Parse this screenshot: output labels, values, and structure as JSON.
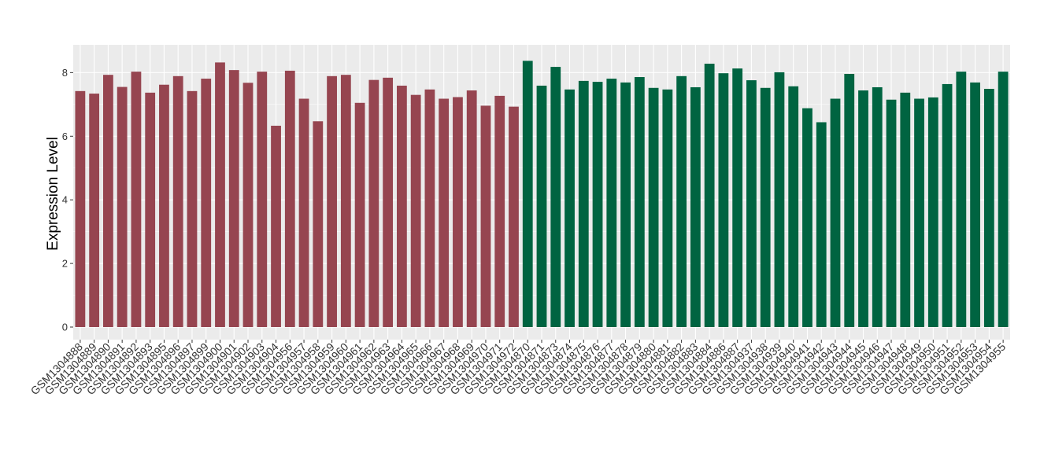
{
  "chart_data": {
    "type": "bar",
    "title": "",
    "xlabel": "",
    "ylabel": "Expression Level",
    "ylim": [
      0,
      8.8
    ],
    "yticks": [
      0,
      2,
      4,
      6,
      8
    ],
    "grid": true,
    "legend": "none",
    "categories": [
      "GSM1304888",
      "GSM1304889",
      "GSM1304890",
      "GSM1304891",
      "GSM1304892",
      "GSM1304893",
      "GSM1304895",
      "GSM1304896",
      "GSM1304897",
      "GSM1304899",
      "GSM1304900",
      "GSM1304901",
      "GSM1304902",
      "GSM1304903",
      "GSM1304904",
      "GSM1304956",
      "GSM1304957",
      "GSM1304958",
      "GSM1304959",
      "GSM1304960",
      "GSM1304961",
      "GSM1304962",
      "GSM1304963",
      "GSM1304964",
      "GSM1304965",
      "GSM1304966",
      "GSM1304967",
      "GSM1304968",
      "GSM1304969",
      "GSM1304970",
      "GSM1304971",
      "GSM1304972",
      "GSM1304870",
      "GSM1304871",
      "GSM1304873",
      "GSM1304874",
      "GSM1304875",
      "GSM1304876",
      "GSM1304877",
      "GSM1304878",
      "GSM1304879",
      "GSM1304880",
      "GSM1304881",
      "GSM1304882",
      "GSM1304883",
      "GSM1304884",
      "GSM1304886",
      "GSM1304887",
      "GSM1304937",
      "GSM1304938",
      "GSM1304939",
      "GSM1304940",
      "GSM1304941",
      "GSM1304942",
      "GSM1304943",
      "GSM1304944",
      "GSM1304945",
      "GSM1304946",
      "GSM1304947",
      "GSM1304948",
      "GSM1304949",
      "GSM1304950",
      "GSM1304951",
      "GSM1304952",
      "GSM1304953",
      "GSM1304954",
      "GSM1304955"
    ],
    "values": [
      7.42,
      7.34,
      7.93,
      7.55,
      8.03,
      7.37,
      7.62,
      7.89,
      7.42,
      7.81,
      8.32,
      8.08,
      7.68,
      8.03,
      6.33,
      8.06,
      7.18,
      6.47,
      7.89,
      7.93,
      7.05,
      7.77,
      7.84,
      7.59,
      7.3,
      7.47,
      7.18,
      7.23,
      7.44,
      6.96,
      7.27,
      6.93,
      8.37,
      7.59,
      8.18,
      7.47,
      7.74,
      7.71,
      7.81,
      7.69,
      7.86,
      7.52,
      7.47,
      7.89,
      7.54,
      8.28,
      7.98,
      8.13,
      7.76,
      7.52,
      8.01,
      7.57,
      6.88,
      6.44,
      7.18,
      7.96,
      7.44,
      7.54,
      7.15,
      7.37,
      7.18,
      7.22,
      7.64,
      8.03,
      7.69,
      7.49,
      8.03
    ],
    "colors": [
      "#964550",
      "#964550",
      "#964550",
      "#964550",
      "#964550",
      "#964550",
      "#964550",
      "#964550",
      "#964550",
      "#964550",
      "#964550",
      "#964550",
      "#964550",
      "#964550",
      "#964550",
      "#964550",
      "#964550",
      "#964550",
      "#964550",
      "#964550",
      "#964550",
      "#964550",
      "#964550",
      "#964550",
      "#964550",
      "#964550",
      "#964550",
      "#964550",
      "#964550",
      "#964550",
      "#964550",
      "#964550",
      "#006441",
      "#006441",
      "#006441",
      "#006441",
      "#006441",
      "#006441",
      "#006441",
      "#006441",
      "#006441",
      "#006441",
      "#006441",
      "#006441",
      "#006441",
      "#006441",
      "#006441",
      "#006441",
      "#006441",
      "#006441",
      "#006441",
      "#006441",
      "#006441",
      "#006441",
      "#006441",
      "#006441",
      "#006441",
      "#006441",
      "#006441",
      "#006441",
      "#006441",
      "#006441",
      "#006441",
      "#006441",
      "#006441",
      "#006441",
      "#006441"
    ],
    "panel_color": "#ebebeb",
    "gridline_color": "#ffffff"
  }
}
